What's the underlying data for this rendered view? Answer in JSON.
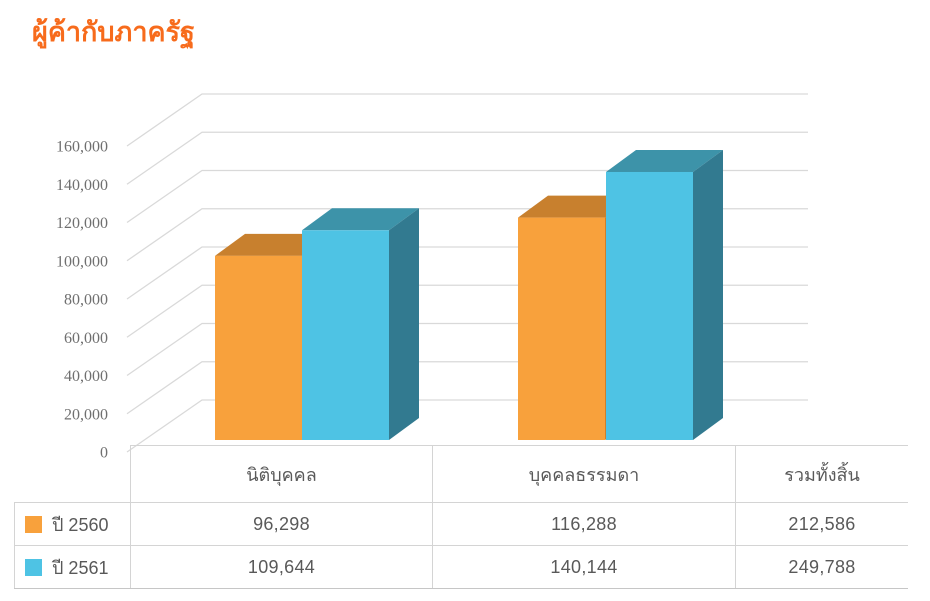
{
  "title": "ผู้ค้ากับภาครัฐ",
  "colors": {
    "title": "#f76b1c",
    "gridline": "#d9d9d9",
    "axis_text": "#6f6f6f",
    "table_text": "#595959",
    "table_border": "#d4d4d4"
  },
  "chart_data": {
    "type": "bar",
    "subtype": "3d-clustered-column",
    "title": "ผู้ค้ากับภาครัฐ",
    "categories": [
      "นิติบุคคล",
      "บุคคลธรรมดา"
    ],
    "series": [
      {
        "name": "ปี 2560",
        "color": "#f8a13c",
        "top_color": "#c8802e",
        "side_color": "#d07f28",
        "values": [
          96298,
          116288
        ],
        "total": 212586
      },
      {
        "name": "ปี 2561",
        "color": "#4ec3e4",
        "top_color": "#3d93a9",
        "side_color": "#327a90",
        "values": [
          109644,
          140144
        ],
        "total": 249788
      }
    ],
    "ylim": [
      0,
      160000
    ],
    "ytick_step": 20000,
    "ytick_labels": [
      "0",
      "20,000",
      "40,000",
      "60,000",
      "80,000",
      "100,000",
      "120,000",
      "140,000",
      "160,000"
    ],
    "grid": true,
    "legend_position": "table-left"
  },
  "table": {
    "columns": [
      "นิติบุคคล",
      "บุคคลธรรมดา",
      "รวมทั้งสิ้น"
    ],
    "rows": [
      {
        "legend": "ปี 2560",
        "swatch": "#f8a13c",
        "cells": [
          "96,298",
          "116,288",
          "212,586"
        ]
      },
      {
        "legend": "ปี 2561",
        "swatch": "#4ec3e4",
        "cells": [
          "109,644",
          "140,144",
          "249,788"
        ]
      }
    ]
  }
}
